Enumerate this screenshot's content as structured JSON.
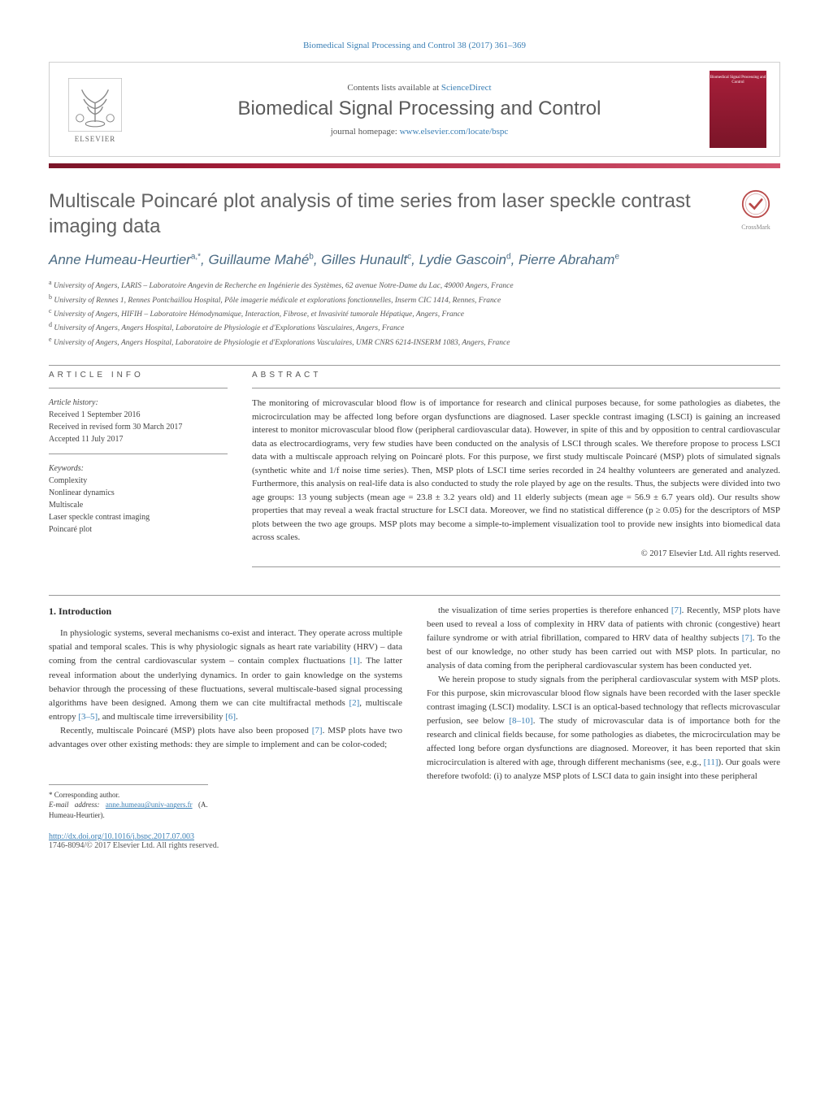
{
  "top_citation": "Biomedical Signal Processing and Control 38 (2017) 361–369",
  "header": {
    "contents_text": "Contents lists available at ",
    "contents_link": "ScienceDirect",
    "journal_name": "Biomedical Signal Processing and Control",
    "homepage_prefix": "journal homepage: ",
    "homepage_url": "www.elsevier.com/locate/bspc",
    "publisher": "ELSEVIER",
    "cover_label": "Biomedical Signal Processing and Control"
  },
  "title": "Multiscale Poincaré plot analysis of time series from laser speckle contrast imaging data",
  "crossmark": "CrossMark",
  "authors_html": "Anne Humeau-Heurtier<sup>a,*</sup>, Guillaume Mahé<sup>b</sup>, Gilles Hunault<sup>c</sup>, Lydie Gascoin<sup>d</sup>, Pierre Abraham<sup>e</sup>",
  "affiliations": [
    "a University of Angers, LARIS – Laboratoire Angevin de Recherche en Ingénierie des Systèmes, 62 avenue Notre-Dame du Lac, 49000 Angers, France",
    "b University of Rennes 1, Rennes Pontchaillou Hospital, Pôle imagerie médicale et explorations fonctionnelles, Inserm CIC 1414, Rennes, France",
    "c University of Angers, HIFIH – Laboratoire Hémodynamique, Interaction, Fibrose, et Invasivité tumorale Hépatique, Angers, France",
    "d University of Angers, Angers Hospital, Laboratoire de Physiologie et d'Explorations Vasculaires, Angers, France",
    "e University of Angers, Angers Hospital, Laboratoire de Physiologie et d'Explorations Vasculaires, UMR CNRS 6214-INSERM 1083, Angers, France"
  ],
  "article_info": {
    "label": "ARTICLE INFO",
    "history_heading": "Article history:",
    "received": "Received 1 September 2016",
    "revised": "Received in revised form 30 March 2017",
    "accepted": "Accepted 11 July 2017",
    "keywords_heading": "Keywords:",
    "keywords": [
      "Complexity",
      "Nonlinear dynamics",
      "Multiscale",
      "Laser speckle contrast imaging",
      "Poincaré plot"
    ]
  },
  "abstract": {
    "label": "ABSTRACT",
    "text": "The monitoring of microvascular blood flow is of importance for research and clinical purposes because, for some pathologies as diabetes, the microcirculation may be affected long before organ dysfunctions are diagnosed. Laser speckle contrast imaging (LSCI) is gaining an increased interest to monitor microvascular blood flow (peripheral cardiovascular data). However, in spite of this and by opposition to central cardiovascular data as electrocardiograms, very few studies have been conducted on the analysis of LSCI through scales. We therefore propose to process LSCI data with a multiscale approach relying on Poincaré plots. For this purpose, we first study multiscale Poincaré (MSP) plots of simulated signals (synthetic white and 1/f noise time series). Then, MSP plots of LSCI time series recorded in 24 healthy volunteers are generated and analyzed. Furthermore, this analysis on real-life data is also conducted to study the role played by age on the results. Thus, the subjects were divided into two age groups: 13 young subjects (mean age = 23.8 ± 3.2 years old) and 11 elderly subjects (mean age = 56.9 ± 6.7 years old). Our results show properties that may reveal a weak fractal structure for LSCI data. Moreover, we find no statistical difference (p ≥ 0.05) for the descriptors of MSP plots between the two age groups. MSP plots may become a simple-to-implement visualization tool to provide new insights into biomedical data across scales.",
    "copyright": "© 2017 Elsevier Ltd. All rights reserved."
  },
  "body": {
    "section_heading": "1. Introduction",
    "left_paragraphs": [
      "In physiologic systems, several mechanisms co-exist and interact. They operate across multiple spatial and temporal scales. This is why physiologic signals as heart rate variability (HRV) – data coming from the central cardiovascular system – contain complex fluctuations [1]. The latter reveal information about the underlying dynamics. In order to gain knowledge on the systems behavior through the processing of these fluctuations, several multiscale-based signal processing algorithms have been designed. Among them we can cite multifractal methods [2], multiscale entropy [3–5], and multiscale time irreversibility [6].",
      "Recently, multiscale Poincaré (MSP) plots have also been proposed [7]. MSP plots have two advantages over other existing methods: they are simple to implement and can be color-coded;"
    ],
    "right_paragraphs": [
      "the visualization of time series properties is therefore enhanced [7]. Recently, MSP plots have been used to reveal a loss of complexity in HRV data of patients with chronic (congestive) heart failure syndrome or with atrial fibrillation, compared to HRV data of healthy subjects [7]. To the best of our knowledge, no other study has been carried out with MSP plots. In particular, no analysis of data coming from the peripheral cardiovascular system has been conducted yet.",
      "We herein propose to study signals from the peripheral cardiovascular system with MSP plots. For this purpose, skin microvascular blood flow signals have been recorded with the laser speckle contrast imaging (LSCI) modality. LSCI is an optical-based technology that reflects microvascular perfusion, see below [8–10]. The study of microvascular data is of importance both for the research and clinical fields because, for some pathologies as diabetes, the microcirculation may be affected long before organ dysfunctions are diagnosed. Moreover, it has been reported that skin microcirculation is altered with age, through different mechanisms (see, e.g., [11]). Our goals were therefore twofold: (i) to analyze MSP plots of LSCI data to gain insight into these peripheral"
    ]
  },
  "corr": {
    "label": "* Corresponding author.",
    "email_label": "E-mail address: ",
    "email": "anne.humeau@univ-angers.fr",
    "email_name": " (A. Humeau-Heurtier)."
  },
  "footer": {
    "doi": "http://dx.doi.org/10.1016/j.bspc.2017.07.003",
    "issn_line": "1746-8094/© 2017 Elsevier Ltd. All rights reserved."
  },
  "colors": {
    "link": "#3a7fb5",
    "journal_gray": "#626262",
    "bar_start": "#7a1528",
    "bar_end": "#d2556e"
  }
}
